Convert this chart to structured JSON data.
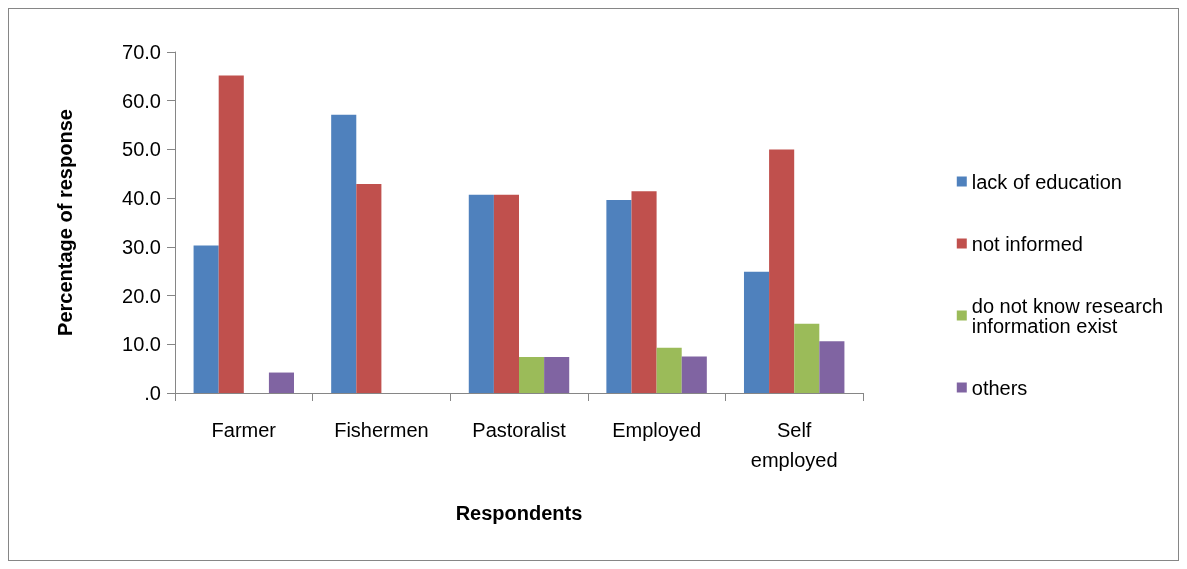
{
  "chart_data": {
    "type": "bar",
    "xlabel": "Respondents",
    "ylabel": "Percentage of response",
    "categories": [
      "Farmer",
      "Fishermen",
      "Pastoralist",
      "Employed",
      "Self\nemployed"
    ],
    "series": [
      {
        "name": "lack of education",
        "color": "#4f81bd",
        "values": [
          30.3,
          57.1,
          40.7,
          39.6,
          24.9
        ]
      },
      {
        "name": "not informed",
        "color": "#c0504d",
        "values": [
          65.2,
          42.9,
          40.7,
          41.4,
          50.0
        ]
      },
      {
        "name": "do not know research\ninformation exist",
        "color": "#9bbb59",
        "values": [
          null,
          null,
          7.4,
          9.3,
          14.2
        ]
      },
      {
        "name": "others",
        "color": "#8064a2",
        "values": [
          4.2,
          null,
          7.4,
          7.5,
          10.6
        ]
      }
    ],
    "ylim": [
      0,
      70
    ],
    "yticks": [
      {
        "value": 0,
        "label": ".0"
      },
      {
        "value": 10,
        "label": "10.0"
      },
      {
        "value": 20,
        "label": "20.0"
      },
      {
        "value": 30,
        "label": "30.0"
      },
      {
        "value": 40,
        "label": "40.0"
      },
      {
        "value": 50,
        "label": "50.0"
      },
      {
        "value": 60,
        "label": "60.0"
      },
      {
        "value": 70,
        "label": "70.0"
      }
    ],
    "grid": false,
    "legend": "right"
  }
}
